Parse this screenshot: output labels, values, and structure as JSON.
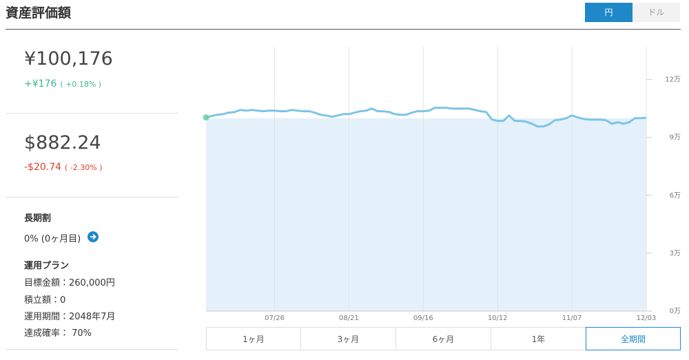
{
  "header": {
    "title": "資産評価額",
    "currency_toggle": [
      {
        "label": "円",
        "selected": true
      },
      {
        "label": "ドル",
        "selected": false
      }
    ]
  },
  "summary": {
    "jpy": {
      "amount": "¥100,176",
      "change": "+¥176",
      "change_pct": "( +0.18% )"
    },
    "usd": {
      "amount": "$882.24",
      "change": "-$20.74",
      "change_pct": "( -2.30% )"
    }
  },
  "plan": {
    "discount_title": "長期割",
    "discount_value": "0% (0ヶ月目)",
    "plan_title": "運用プラン",
    "items": [
      "目標金額：260,000円",
      "積立額：0",
      "運用期間：2048年7月",
      "達成確率： 70%"
    ]
  },
  "chart_data": {
    "type": "line",
    "categories": [
      null,
      null,
      null,
      null,
      null,
      null,
      null,
      null,
      null,
      null,
      null,
      null,
      "07/26",
      null,
      null,
      null,
      null,
      null,
      null,
      null,
      null,
      null,
      null,
      null,
      null,
      "08/21",
      null,
      null,
      null,
      null,
      null,
      null,
      null,
      null,
      null,
      null,
      null,
      null,
      "09/16",
      null,
      null,
      null,
      null,
      null,
      null,
      null,
      null,
      null,
      null,
      null,
      null,
      "10/12",
      null,
      null,
      null,
      null,
      null,
      null,
      null,
      null,
      null,
      null,
      null,
      null,
      "11/07",
      null,
      null,
      null,
      null,
      null,
      null,
      null,
      null,
      null,
      null,
      null,
      null,
      "12/03"
    ],
    "series": [
      {
        "color": "#7cc4e6",
        "values": [
          100400,
          101100,
          101800,
          102100,
          102900,
          103200,
          104300,
          103900,
          104300,
          103900,
          103600,
          103900,
          103900,
          103600,
          103600,
          104300,
          103900,
          103600,
          103600,
          102900,
          101800,
          101400,
          100700,
          101400,
          102100,
          102100,
          102900,
          103600,
          103900,
          105000,
          103600,
          103600,
          103200,
          102100,
          101800,
          101800,
          102900,
          103600,
          103600,
          103900,
          105400,
          105400,
          105400,
          105000,
          105000,
          105000,
          105000,
          104300,
          103600,
          103200,
          99300,
          98600,
          98600,
          101400,
          98600,
          98600,
          98200,
          97100,
          95700,
          95700,
          96800,
          98900,
          99300,
          100000,
          101400,
          100400,
          99600,
          99300,
          99300,
          99300,
          98900,
          97100,
          97900,
          97100,
          97900,
          100000,
          100000,
          100200
        ]
      }
    ],
    "baseline": 100000,
    "baseline_color": "#e4f1fa",
    "ylim": [
      0,
      137000
    ],
    "yticks": [
      {
        "value": 0,
        "label": "0万"
      },
      {
        "value": 30000,
        "label": "3万"
      },
      {
        "value": 60000,
        "label": "6万"
      },
      {
        "value": 90000,
        "label": "9万"
      },
      {
        "value": 120000,
        "label": "12万"
      }
    ],
    "grid": true
  },
  "range_buttons": [
    {
      "label": "1ヶ月",
      "selected": false
    },
    {
      "label": "3ヶ月",
      "selected": false
    },
    {
      "label": "6ヶ月",
      "selected": false
    },
    {
      "label": "1年",
      "selected": false
    },
    {
      "label": "全期間",
      "selected": true
    }
  ]
}
